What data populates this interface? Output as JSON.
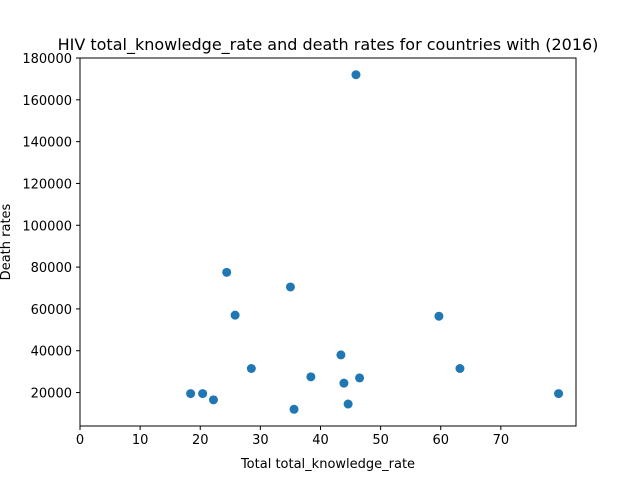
{
  "chart_data": {
    "type": "scatter",
    "title": "HIV total_knowledge_rate and death rates for countries with (2016)",
    "xlabel": "Total total_knowledge_rate",
    "ylabel": "Death rates",
    "xlim": [
      0,
      82.5
    ],
    "ylim": [
      4000,
      180000
    ],
    "xticks": [
      0,
      10,
      20,
      30,
      40,
      50,
      60,
      70
    ],
    "yticks": [
      20000,
      40000,
      60000,
      80000,
      100000,
      120000,
      140000,
      160000,
      180000
    ],
    "grid": false,
    "marker_color": "#1f77b4",
    "points": [
      {
        "x": 18.4,
        "y": 19500
      },
      {
        "x": 20.4,
        "y": 19500
      },
      {
        "x": 22.2,
        "y": 16500
      },
      {
        "x": 24.4,
        "y": 77500
      },
      {
        "x": 25.8,
        "y": 57000
      },
      {
        "x": 28.5,
        "y": 31500
      },
      {
        "x": 35.0,
        "y": 70500
      },
      {
        "x": 35.6,
        "y": 12000
      },
      {
        "x": 38.4,
        "y": 27500
      },
      {
        "x": 43.4,
        "y": 38000
      },
      {
        "x": 43.9,
        "y": 24500
      },
      {
        "x": 44.6,
        "y": 14500
      },
      {
        "x": 45.9,
        "y": 172000
      },
      {
        "x": 46.5,
        "y": 27000
      },
      {
        "x": 59.7,
        "y": 56500
      },
      {
        "x": 63.2,
        "y": 31500
      },
      {
        "x": 79.6,
        "y": 19500
      }
    ]
  }
}
